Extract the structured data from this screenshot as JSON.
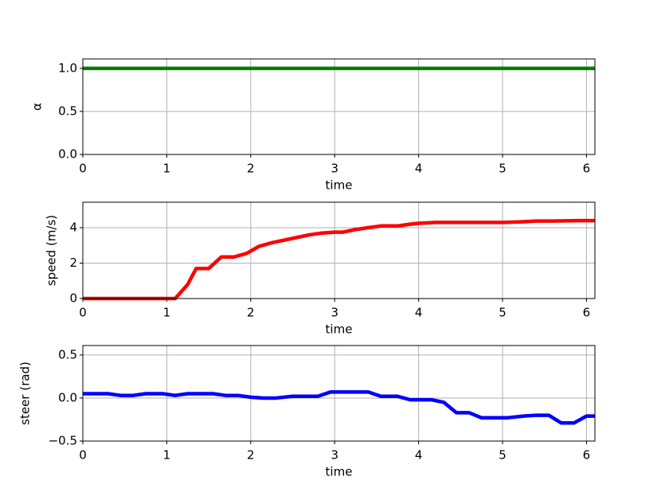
{
  "chart_data": [
    {
      "type": "line",
      "xlabel": "time",
      "ylabel": "α",
      "xlim": [
        0,
        6.1
      ],
      "xticks": [
        0,
        1,
        2,
        3,
        4,
        5,
        6
      ],
      "ylim": [
        0,
        1.11
      ],
      "yticks": [
        {
          "value": 0,
          "label": "0.0"
        },
        0.5,
        {
          "value": 1,
          "label": "1.0"
        }
      ],
      "grid": true,
      "series": [
        {
          "color": "#008000",
          "x": [
            0,
            6.1
          ],
          "values": [
            1,
            1
          ]
        }
      ]
    },
    {
      "type": "line",
      "xlabel": "time",
      "ylabel": "speed (m/s)",
      "xlim": [
        0,
        6.1
      ],
      "xticks": [
        0,
        1,
        2,
        3,
        4,
        5,
        6
      ],
      "ylim": [
        0,
        5.44
      ],
      "yticks": [
        0,
        2,
        4
      ],
      "grid": true,
      "series": [
        {
          "color": "#ff0000",
          "x": [
            0,
            1.1,
            1.25,
            1.35,
            1.5,
            1.65,
            1.8,
            1.95,
            2.1,
            2.25,
            2.4,
            2.55,
            2.7,
            2.85,
            3.0,
            3.1,
            3.25,
            3.4,
            3.55,
            3.75,
            3.9,
            4.0,
            4.2,
            4.5,
            5.0,
            5.2,
            5.4,
            5.6,
            5.9,
            6.1
          ],
          "values": [
            0,
            0,
            0.8,
            1.7,
            1.7,
            2.35,
            2.35,
            2.55,
            2.95,
            3.15,
            3.3,
            3.45,
            3.6,
            3.7,
            3.75,
            3.75,
            3.9,
            4.0,
            4.1,
            4.1,
            4.2,
            4.25,
            4.3,
            4.3,
            4.3,
            4.33,
            4.38,
            4.38,
            4.4,
            4.4
          ]
        }
      ]
    },
    {
      "type": "line",
      "xlabel": "time",
      "ylabel": "steer (rad)",
      "xlim": [
        0,
        6.1
      ],
      "xticks": [
        0,
        1,
        2,
        3,
        4,
        5,
        6
      ],
      "ylim": [
        -0.5,
        0.61
      ],
      "yticks": [
        {
          "value": -0.5,
          "label": "−0.5"
        },
        {
          "value": 0,
          "label": "0.0"
        },
        0.5
      ],
      "grid": true,
      "series": [
        {
          "color": "#0000ff",
          "x": [
            0,
            0.3,
            0.45,
            0.6,
            0.75,
            0.95,
            1.1,
            1.25,
            1.55,
            1.7,
            1.85,
            2.0,
            2.15,
            2.3,
            2.5,
            2.8,
            2.95,
            3.4,
            3.55,
            3.75,
            3.9,
            4.15,
            4.3,
            4.45,
            4.6,
            4.75,
            5.05,
            5.25,
            5.4,
            5.55,
            5.7,
            5.85,
            6.0,
            6.1
          ],
          "values": [
            0.05,
            0.05,
            0.03,
            0.03,
            0.05,
            0.05,
            0.03,
            0.05,
            0.05,
            0.03,
            0.03,
            0.01,
            0.0,
            0.0,
            0.02,
            0.02,
            0.07,
            0.07,
            0.02,
            0.02,
            -0.02,
            -0.02,
            -0.05,
            -0.17,
            -0.17,
            -0.23,
            -0.23,
            -0.21,
            -0.2,
            -0.2,
            -0.29,
            -0.29,
            -0.21,
            -0.21
          ]
        }
      ]
    }
  ]
}
